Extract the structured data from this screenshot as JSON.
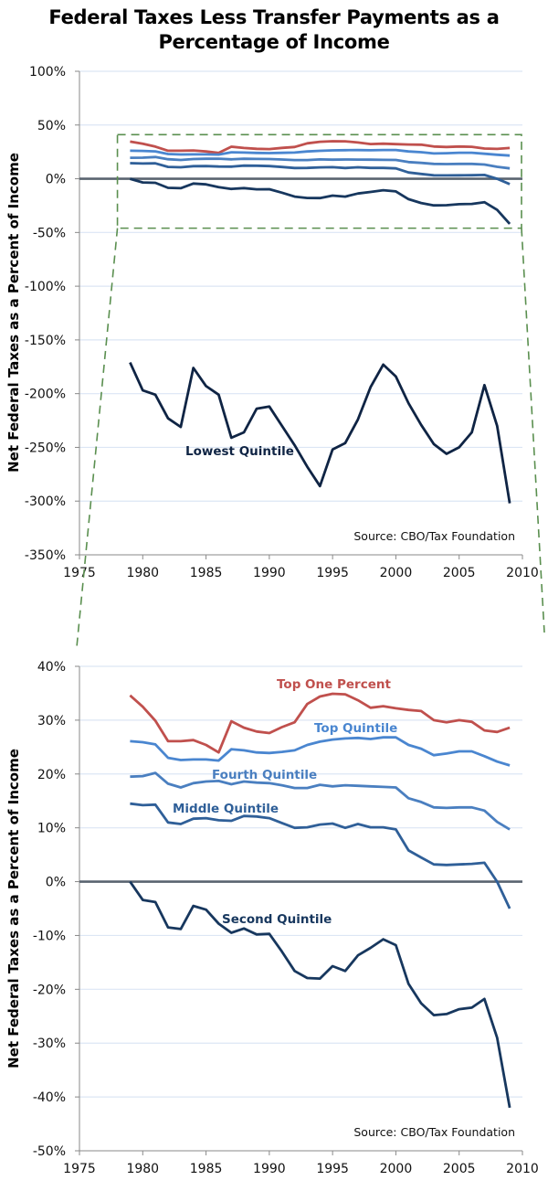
{
  "title": {
    "line1": "Federal Taxes Less Transfer Payments as a",
    "line2": "Percentage of Income"
  },
  "colors": {
    "top_one_percent": "#c0504d",
    "top_quintile": "#4a86d0",
    "fourth_quintile": "#4a7fc0",
    "middle_quintile": "#2f5f98",
    "second_quintile": "#17375e",
    "lowest_quintile": "#0f2444",
    "zero_line": "#5a6470",
    "grid": "#dce6f4",
    "zoom_box": "#5a8f4f"
  },
  "chart_data": [
    {
      "type": "line",
      "title": "Federal Taxes Less Transfer Payments as a Percentage of Income",
      "xlabel": "",
      "ylabel": "Net Federal Taxes as a Percent of Income",
      "xlim": [
        1975,
        2010
      ],
      "ylim": [
        -350,
        100
      ],
      "x_ticks": [
        "1975",
        "1980",
        "1985",
        "1990",
        "1995",
        "2000",
        "2005",
        "2010"
      ],
      "y_ticks": [
        "100%",
        "50%",
        "0%",
        "-50%",
        "-100%",
        "-150%",
        "-200%",
        "-250%",
        "-300%",
        "-350%"
      ],
      "grid": true,
      "source": "Source: CBO/Tax Foundation",
      "annotations": [
        "Lowest Quintile"
      ],
      "zoom_box": {
        "y_range": [
          -46,
          41
        ],
        "x_range": [
          1978,
          2010
        ]
      },
      "x": [
        1979,
        1980,
        1981,
        1982,
        1983,
        1984,
        1985,
        1986,
        1987,
        1988,
        1989,
        1990,
        1991,
        1992,
        1993,
        1994,
        1995,
        1996,
        1997,
        1998,
        1999,
        2000,
        2001,
        2002,
        2003,
        2004,
        2005,
        2006,
        2007,
        2008,
        2009
      ],
      "series": [
        {
          "name": "Top One Percent",
          "key": "top_one_percent",
          "values": [
            34.6,
            32.5,
            29.9,
            26.1,
            26.1,
            26.3,
            25.4,
            24.0,
            29.8,
            28.6,
            27.9,
            27.6,
            28.7,
            29.6,
            33.0,
            34.4,
            34.9,
            34.8,
            33.7,
            32.3,
            32.6,
            32.2,
            31.9,
            31.7,
            30.0,
            29.6,
            30.0,
            29.7,
            28.1,
            27.8,
            28.6
          ]
        },
        {
          "name": "Top Quintile",
          "key": "top_quintile",
          "values": [
            26.1,
            25.9,
            25.5,
            23.0,
            22.6,
            22.7,
            22.7,
            22.5,
            24.6,
            24.4,
            24.0,
            23.9,
            24.1,
            24.4,
            25.4,
            26.0,
            26.4,
            26.6,
            26.7,
            26.5,
            26.8,
            26.8,
            25.4,
            24.7,
            23.5,
            23.8,
            24.2,
            24.2,
            23.3,
            22.3,
            21.6
          ]
        },
        {
          "name": "Fourth Quintile",
          "key": "fourth_quintile",
          "values": [
            19.5,
            19.6,
            20.2,
            18.2,
            17.5,
            18.3,
            18.6,
            18.7,
            18.1,
            18.6,
            18.4,
            18.3,
            17.9,
            17.4,
            17.4,
            18.0,
            17.7,
            17.9,
            17.8,
            17.7,
            17.6,
            17.5,
            15.5,
            14.8,
            13.8,
            13.7,
            13.8,
            13.8,
            13.2,
            11.1,
            9.7
          ]
        },
        {
          "name": "Middle Quintile",
          "key": "middle_quintile",
          "values": [
            14.5,
            14.2,
            14.3,
            11.0,
            10.7,
            11.7,
            11.8,
            11.4,
            11.3,
            12.2,
            12.1,
            11.8,
            10.9,
            10.0,
            10.1,
            10.6,
            10.8,
            10.0,
            10.7,
            10.1,
            10.1,
            9.7,
            5.8,
            4.5,
            3.2,
            3.1,
            3.2,
            3.3,
            3.5,
            0.0,
            -5.0
          ]
        },
        {
          "name": "Second Quintile",
          "key": "second_quintile",
          "values": [
            0.0,
            -3.4,
            -3.8,
            -8.5,
            -8.8,
            -4.5,
            -5.2,
            -7.8,
            -9.5,
            -8.7,
            -9.8,
            -9.7,
            -13.0,
            -16.6,
            -17.9,
            -18.0,
            -15.7,
            -16.6,
            -13.7,
            -12.3,
            -10.7,
            -11.8,
            -19.0,
            -22.6,
            -24.8,
            -24.6,
            -23.7,
            -23.4,
            -21.8,
            -29.0,
            -42.0
          ]
        },
        {
          "name": "Lowest Quintile",
          "key": "lowest_quintile",
          "values": [
            -171,
            -197,
            -201,
            -223,
            -231,
            -176,
            -193,
            -201,
            -241,
            -236,
            -214,
            -212,
            -230,
            -248,
            -268,
            -286,
            -252,
            -246,
            -224,
            -194,
            -173,
            -184,
            -209,
            -229,
            -247,
            -256,
            -250,
            -236,
            -192,
            -230,
            -302
          ]
        }
      ]
    },
    {
      "type": "line",
      "title": "",
      "xlabel": "",
      "ylabel": "Net Federal Taxes as a Percent of Income",
      "xlim": [
        1975,
        2010
      ],
      "ylim": [
        -50,
        40
      ],
      "x_ticks": [
        "1975",
        "1980",
        "1985",
        "1990",
        "1995",
        "2000",
        "2005",
        "2010"
      ],
      "y_ticks": [
        "40%",
        "30%",
        "20%",
        "10%",
        "0%",
        "-10%",
        "-20%",
        "-30%",
        "-40%",
        "-50%"
      ],
      "grid": true,
      "source": "Source: CBO/Tax Foundation",
      "annotations": [
        "Top One Percent",
        "Top Quintile",
        "Fourth Quintile",
        "Middle Quintile",
        "Second Quintile"
      ],
      "series_keys": [
        "top_one_percent",
        "top_quintile",
        "fourth_quintile",
        "middle_quintile",
        "second_quintile"
      ]
    }
  ]
}
